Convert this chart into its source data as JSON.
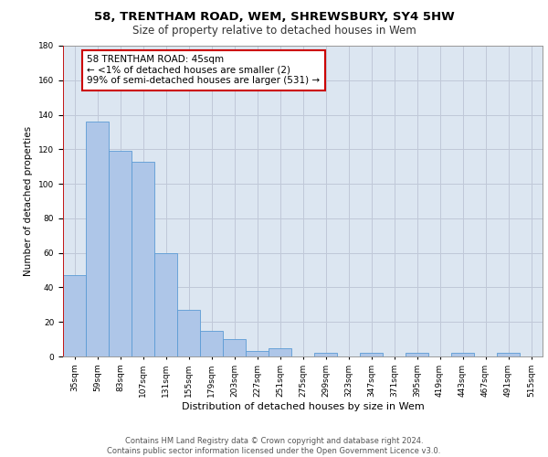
{
  "title1": "58, TRENTHAM ROAD, WEM, SHREWSBURY, SY4 5HW",
  "title2": "Size of property relative to detached houses in Wem",
  "xlabel": "Distribution of detached houses by size in Wem",
  "ylabel": "Number of detached properties",
  "categories": [
    "35sqm",
    "59sqm",
    "83sqm",
    "107sqm",
    "131sqm",
    "155sqm",
    "179sqm",
    "203sqm",
    "227sqm",
    "251sqm",
    "275sqm",
    "299sqm",
    "323sqm",
    "347sqm",
    "371sqm",
    "395sqm",
    "419sqm",
    "443sqm",
    "467sqm",
    "491sqm",
    "515sqm"
  ],
  "values": [
    47,
    136,
    119,
    113,
    60,
    27,
    15,
    10,
    3,
    5,
    0,
    2,
    0,
    2,
    0,
    2,
    0,
    2,
    0,
    2,
    0
  ],
  "bar_color": "#aec6e8",
  "bar_edge_color": "#5b9bd5",
  "annotation_line1": "58 TRENTHAM ROAD: 45sqm",
  "annotation_line2": "← <1% of detached houses are smaller (2)",
  "annotation_line3": "99% of semi-detached houses are larger (531) →",
  "annotation_box_color": "#ffffff",
  "annotation_box_edge_color": "#cc0000",
  "ylim": [
    0,
    180
  ],
  "yticks": [
    0,
    20,
    40,
    60,
    80,
    100,
    120,
    140,
    160,
    180
  ],
  "grid_color": "#c0c8d8",
  "background_color": "#dce6f1",
  "footer_text": "Contains HM Land Registry data © Crown copyright and database right 2024.\nContains public sector information licensed under the Open Government Licence v3.0.",
  "title1_fontsize": 9.5,
  "title2_fontsize": 8.5,
  "xlabel_fontsize": 8,
  "ylabel_fontsize": 7.5,
  "tick_fontsize": 6.5,
  "annotation_fontsize": 7.5,
  "footer_fontsize": 6
}
